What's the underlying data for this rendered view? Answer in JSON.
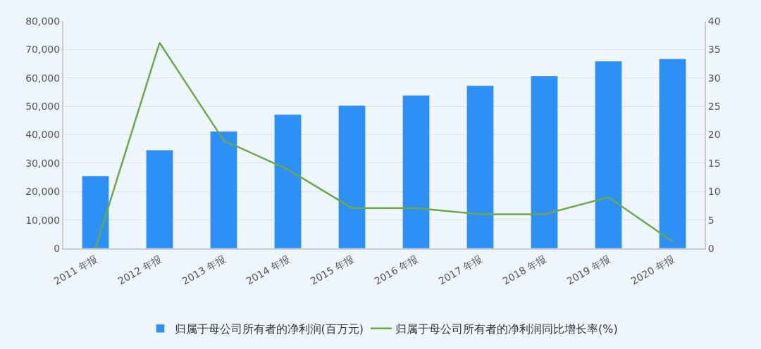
{
  "chart_data": {
    "type": "bar",
    "categories": [
      "2011 年报",
      "2012 年报",
      "2013 年报",
      "2014 年报",
      "2015 年报",
      "2016 年报",
      "2017 年报",
      "2018 年报",
      "2019 年报",
      "2020 年报"
    ],
    "series": [
      {
        "name": "归属于母公司所有者的净利润(百万元)",
        "color": "#2e8ff7",
        "values": [
          25500,
          34600,
          41200,
          47100,
          50300,
          53900,
          57300,
          60700,
          65900,
          66700
        ]
      },
      {
        "name": "归属于母公司所有者的净利润同比增长率(%)",
        "type": "line",
        "axis": "y2",
        "color": "#6aa84f",
        "values": [
          0,
          36.2,
          19.0,
          13.9,
          7.1,
          7.1,
          6.0,
          6.0,
          9.0,
          1.2
        ]
      }
    ],
    "ylim": [
      0,
      80000
    ],
    "yticks": [
      {
        "value": 0,
        "label": "0"
      },
      {
        "value": 10000,
        "label": "10,000"
      },
      {
        "value": 20000,
        "label": "20,000"
      },
      {
        "value": 30000,
        "label": "30,000"
      },
      {
        "value": 40000,
        "label": "40,000"
      },
      {
        "value": 50000,
        "label": "50,000"
      },
      {
        "value": 60000,
        "label": "60,000"
      },
      {
        "value": 70000,
        "label": "70,000"
      },
      {
        "value": 80000,
        "label": "80,000"
      }
    ],
    "y2lim": [
      0,
      40
    ],
    "y2ticks": [
      0,
      5,
      10,
      15,
      20,
      25,
      30,
      35,
      40
    ],
    "grid": "y",
    "legend": "bottom",
    "marker": "none",
    "line_style": "solid"
  }
}
